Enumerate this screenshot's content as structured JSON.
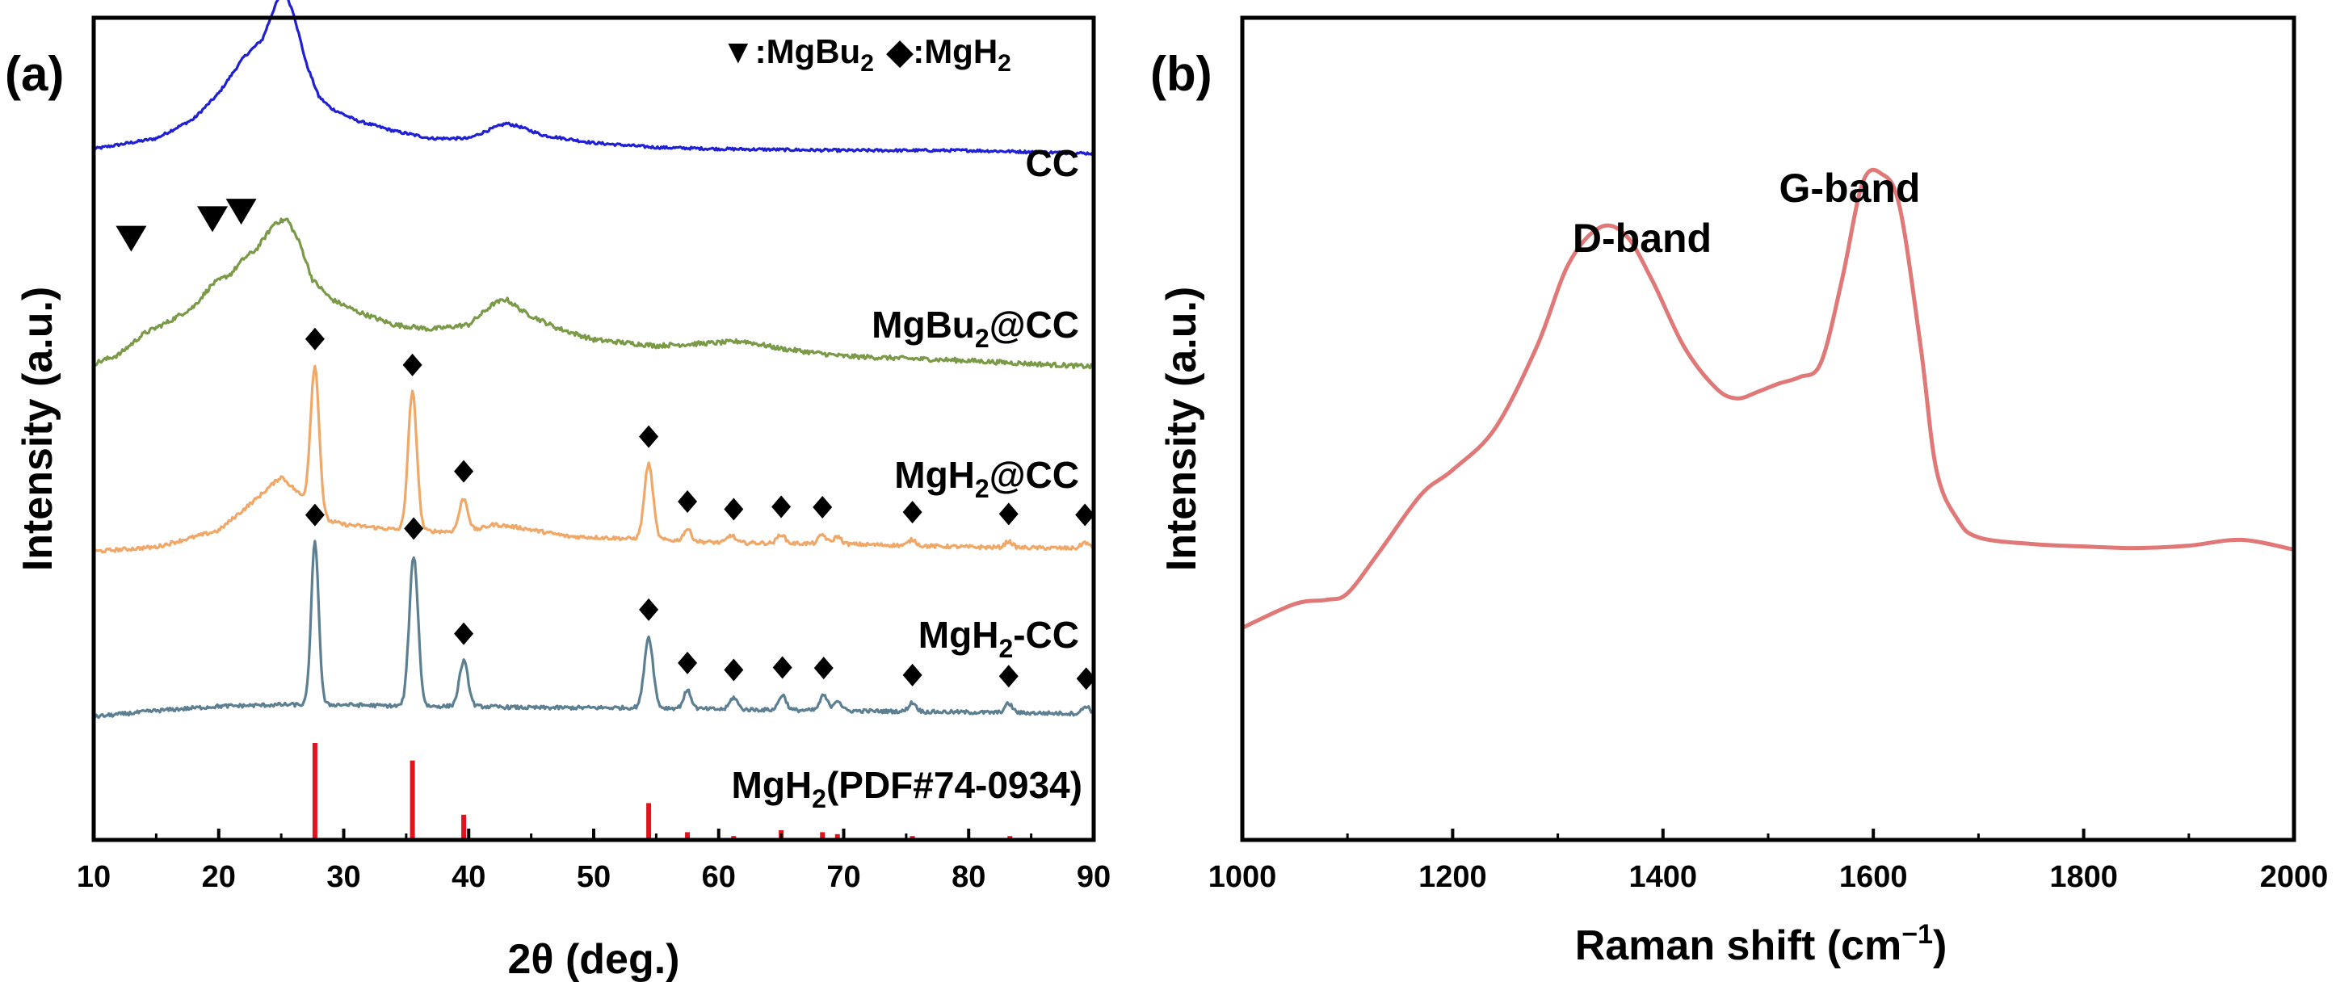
{
  "chart_data": [
    {
      "type": "line",
      "panel": "(a)",
      "xlabel": "2θ (deg.)",
      "ylabel": "Intensity (a.u.)",
      "xlim": [
        10,
        90
      ],
      "xticks": [
        10,
        20,
        30,
        40,
        50,
        60,
        70,
        80,
        90
      ],
      "legend": {
        "markers": [
          {
            "symbol": "▼",
            "text": ":MgBu₂"
          },
          {
            "symbol": "◆",
            "text": ":MgH₂"
          }
        ],
        "position": "top-right"
      },
      "series": [
        {
          "name": "CC",
          "label": "CC",
          "color": "#1f1fd6",
          "offset": 4.55,
          "noise": 0.018,
          "base": [
            [
              10,
              0.05
            ],
            [
              15,
              0.12
            ],
            [
              18,
              0.25
            ],
            [
              20,
              0.42
            ],
            [
              22,
              0.66
            ],
            [
              23.5,
              0.78
            ],
            [
              24.5,
              1.0
            ],
            [
              25.2,
              1.12
            ],
            [
              26,
              0.95
            ],
            [
              27,
              0.62
            ],
            [
              28,
              0.4
            ],
            [
              29,
              0.32
            ],
            [
              31,
              0.24
            ],
            [
              34,
              0.17
            ],
            [
              37,
              0.12
            ],
            [
              40,
              0.12
            ],
            [
              42,
              0.19
            ],
            [
              43,
              0.22
            ],
            [
              44,
              0.2
            ],
            [
              46,
              0.14
            ],
            [
              50,
              0.09
            ],
            [
              55,
              0.06
            ],
            [
              60,
              0.05
            ],
            [
              70,
              0.04
            ],
            [
              80,
              0.04
            ],
            [
              90,
              0.02
            ]
          ],
          "peaks": []
        },
        {
          "name": "MgBu₂@CC",
          "label": "MgBu₂@CC",
          "color": "#7a9a48",
          "offset": 3.15,
          "noise": 0.03,
          "base": [
            [
              10,
              0.02
            ],
            [
              12,
              0.08
            ],
            [
              14,
              0.22
            ],
            [
              16,
              0.3
            ],
            [
              18,
              0.4
            ],
            [
              19.5,
              0.55
            ],
            [
              21,
              0.62
            ],
            [
              22,
              0.72
            ],
            [
              23,
              0.78
            ],
            [
              24.5,
              0.96
            ],
            [
              25.5,
              0.98
            ],
            [
              26.5,
              0.82
            ],
            [
              27.5,
              0.58
            ],
            [
              29,
              0.45
            ],
            [
              31,
              0.37
            ],
            [
              34,
              0.28
            ],
            [
              37,
              0.25
            ],
            [
              40,
              0.28
            ],
            [
              42,
              0.42
            ],
            [
              43,
              0.45
            ],
            [
              44.5,
              0.36
            ],
            [
              47,
              0.26
            ],
            [
              50,
              0.18
            ],
            [
              55,
              0.14
            ],
            [
              60,
              0.16
            ],
            [
              62,
              0.17
            ],
            [
              65,
              0.12
            ],
            [
              70,
              0.07
            ],
            [
              80,
              0.04
            ],
            [
              90,
              0.0
            ]
          ],
          "peaks": []
        },
        {
          "name": "MgH₂@CC",
          "label": "MgH₂@CC",
          "color": "#f0a868",
          "offset": 1.9,
          "noise": 0.025,
          "base": [
            [
              10,
              0.02
            ],
            [
              15,
              0.05
            ],
            [
              20,
              0.16
            ],
            [
              23,
              0.37
            ],
            [
              25,
              0.52
            ],
            [
              26.5,
              0.4
            ],
            [
              28,
              0.24
            ],
            [
              30,
              0.2
            ],
            [
              35,
              0.16
            ],
            [
              40,
              0.15
            ],
            [
              42,
              0.2
            ],
            [
              44,
              0.18
            ],
            [
              48,
              0.12
            ],
            [
              55,
              0.1
            ],
            [
              60,
              0.08
            ],
            [
              70,
              0.07
            ],
            [
              80,
              0.05
            ],
            [
              90,
              0.04
            ]
          ],
          "peaks": [
            [
              27.7,
              0.98,
              0.35
            ],
            [
              35.5,
              0.92,
              0.35
            ],
            [
              39.6,
              0.22,
              0.35
            ],
            [
              54.4,
              0.5,
              0.35
            ],
            [
              57.5,
              0.08,
              0.3
            ],
            [
              61,
              0.05,
              0.3
            ],
            [
              65,
              0.06,
              0.3
            ],
            [
              68.3,
              0.06,
              0.3
            ],
            [
              69.5,
              0.05,
              0.3
            ],
            [
              75.5,
              0.04,
              0.3
            ],
            [
              83.2,
              0.04,
              0.3
            ],
            [
              89.3,
              0.04,
              0.3
            ]
          ]
        },
        {
          "name": "MgH₂-CC",
          "label": "MgH₂-CC",
          "color": "#5c7f92",
          "offset": 0.82,
          "noise": 0.025,
          "base": [
            [
              10,
              0.0
            ],
            [
              15,
              0.04
            ],
            [
              20,
              0.07
            ],
            [
              25,
              0.08
            ],
            [
              30,
              0.08
            ],
            [
              35,
              0.07
            ],
            [
              40,
              0.07
            ],
            [
              45,
              0.06
            ],
            [
              50,
              0.06
            ],
            [
              55,
              0.06
            ],
            [
              60,
              0.05
            ],
            [
              70,
              0.04
            ],
            [
              80,
              0.03
            ],
            [
              90,
              0.02
            ]
          ],
          "peaks": [
            [
              27.7,
              1.08,
              0.3
            ],
            [
              35.6,
              1.0,
              0.35
            ],
            [
              39.6,
              0.3,
              0.35
            ],
            [
              54.4,
              0.47,
              0.35
            ],
            [
              57.5,
              0.12,
              0.3
            ],
            [
              61.2,
              0.08,
              0.3
            ],
            [
              65.1,
              0.1,
              0.3
            ],
            [
              68.4,
              0.1,
              0.3
            ],
            [
              69.5,
              0.07,
              0.3
            ],
            [
              75.5,
              0.06,
              0.3
            ],
            [
              83.2,
              0.06,
              0.3
            ],
            [
              89.4,
              0.05,
              0.3
            ]
          ]
        },
        {
          "name": "MgH₂(PDF#74-0934)",
          "label": "MgH₂(PDF#74-0934)",
          "type": "stick",
          "color": "#e0141c",
          "sticks": [
            [
              27.7,
              1.0
            ],
            [
              35.5,
              0.82
            ],
            [
              39.6,
              0.26
            ],
            [
              54.4,
              0.38
            ],
            [
              57.5,
              0.08
            ],
            [
              61.2,
              0.04
            ],
            [
              65.0,
              0.1
            ],
            [
              68.3,
              0.08
            ],
            [
              69.5,
              0.06
            ],
            [
              75.5,
              0.04
            ],
            [
              83.3,
              0.04
            ],
            [
              89.3,
              0.02
            ]
          ]
        }
      ],
      "markers": [
        {
          "symbol": "▼",
          "meaning": "MgBu₂",
          "series": "MgBu₂@CC",
          "x": [
            13,
            19.5,
            21.8
          ],
          "y": [
            3.97,
            4.1,
            4.15
          ]
        },
        {
          "symbol": "◆",
          "meaning": "MgH₂",
          "series": "MgH₂@CC",
          "x": [
            27.7,
            35.5,
            39.6,
            54.4,
            57.5,
            61.2,
            65.0,
            68.3,
            75.5,
            83.2,
            89.3
          ]
        },
        {
          "symbol": "◆",
          "meaning": "MgH₂",
          "series": "MgH₂-CC",
          "x": [
            27.7,
            35.6,
            39.6,
            54.4,
            57.5,
            61.2,
            65.1,
            68.4,
            75.5,
            83.2,
            89.4
          ]
        }
      ]
    },
    {
      "type": "line",
      "panel": "(b)",
      "xlabel": "Raman shift (cm⁻¹)",
      "ylabel": "Intensity (a.u.)",
      "xlim": [
        1000,
        2000
      ],
      "xticks": [
        1000,
        1200,
        1400,
        1600,
        1800,
        2000
      ],
      "series": [
        {
          "name": "Raman",
          "color": "#e07878",
          "points": [
            [
              1000,
              0.258
            ],
            [
              1050,
              0.287
            ],
            [
              1080,
              0.292
            ],
            [
              1100,
              0.3
            ],
            [
              1130,
              0.35
            ],
            [
              1170,
              0.42
            ],
            [
              1200,
              0.45
            ],
            [
              1240,
              0.5
            ],
            [
              1280,
              0.6
            ],
            [
              1310,
              0.7
            ],
            [
              1340,
              0.745
            ],
            [
              1365,
              0.735
            ],
            [
              1390,
              0.68
            ],
            [
              1420,
              0.6
            ],
            [
              1450,
              0.55
            ],
            [
              1470,
              0.537
            ],
            [
              1490,
              0.545
            ],
            [
              1510,
              0.555
            ],
            [
              1530,
              0.563
            ],
            [
              1550,
              0.58
            ],
            [
              1570,
              0.68
            ],
            [
              1590,
              0.8
            ],
            [
              1608,
              0.81
            ],
            [
              1625,
              0.77
            ],
            [
              1645,
              0.6
            ],
            [
              1660,
              0.45
            ],
            [
              1680,
              0.39
            ],
            [
              1700,
              0.368
            ],
            [
              1750,
              0.36
            ],
            [
              1800,
              0.357
            ],
            [
              1850,
              0.355
            ],
            [
              1900,
              0.358
            ],
            [
              1950,
              0.365
            ],
            [
              2000,
              0.353
            ]
          ]
        }
      ],
      "annotations": [
        {
          "text": "D-band",
          "x": 1345
        },
        {
          "text": "G-band",
          "x": 1608
        }
      ]
    }
  ],
  "panel_a": {
    "label": "(a)",
    "legend_tri": "▼",
    "legend_tri_text": ":MgBu",
    "legend_tri_sub": "2",
    "legend_dia": "◆",
    "legend_dia_text": ":MgH",
    "legend_dia_sub": "2",
    "series_labels": {
      "cc": "CC",
      "mgbu_main": "MgBu",
      "mgbu_sub": "2",
      "mgbu_suffix": "@CC",
      "mgh_cc_main": "MgH",
      "mgh_cc_sub": "2",
      "mgh_cc_suffix": "@CC",
      "mgh_dash_main": "MgH",
      "mgh_dash_sub": "2",
      "mgh_dash_suffix": "-CC",
      "pdf_main": "MgH",
      "pdf_sub": "2",
      "pdf_suffix": "(PDF#74-0934)"
    },
    "xlabel": "2θ (deg.)",
    "ylabel": "Intensity (a.u.)"
  },
  "panel_b": {
    "label": "(b)",
    "d_band": "D-band",
    "g_band": "G-band",
    "xlabel_main": "Raman shift (cm",
    "xlabel_sup": "−1",
    "xlabel_end": ")",
    "ylabel": "Intensity (a.u.)"
  }
}
